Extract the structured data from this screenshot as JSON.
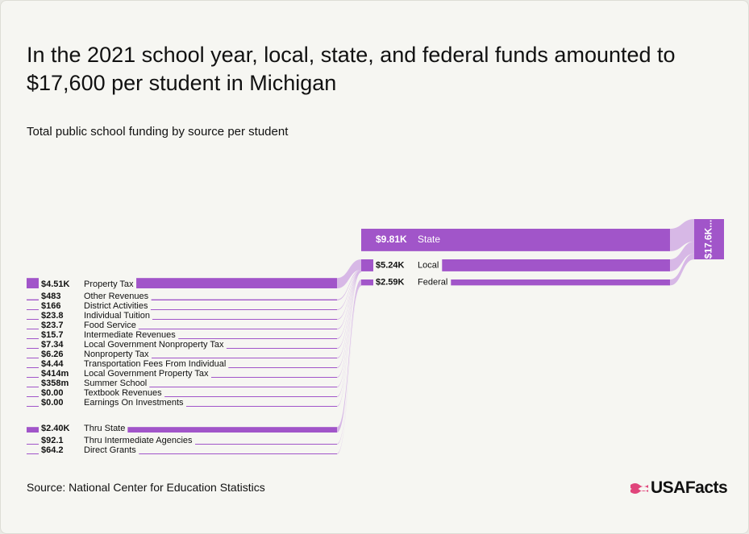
{
  "chart_data": {
    "type": "sankey",
    "title": "In the 2021 school year, local, state, and federal funds amounted to $17,600 per student in Michigan",
    "subtitle": "Total public school funding by source per student",
    "color": "#a155c9",
    "link_color": "#d7b8e6",
    "total": {
      "value": 17600,
      "value_label": "$17.6K..."
    },
    "flows": [
      {
        "name": "State",
        "value": 9810,
        "value_label": "$9.81K",
        "sources": []
      },
      {
        "name": "Local",
        "value": 5240,
        "value_label": "$5.24K",
        "sources": [
          {
            "name": "Property Tax",
            "value": 4510,
            "value_label": "$4.51K"
          },
          {
            "name": "Other Revenues",
            "value": 483,
            "value_label": "$483"
          },
          {
            "name": "District Activities",
            "value": 166,
            "value_label": "$166"
          },
          {
            "name": "Individual Tuition",
            "value": 23.8,
            "value_label": "$23.8"
          },
          {
            "name": "Food Service",
            "value": 23.7,
            "value_label": "$23.7"
          },
          {
            "name": "Intermediate Revenues",
            "value": 15.7,
            "value_label": "$15.7"
          },
          {
            "name": "Local Government Nonproperty Tax",
            "value": 7.34,
            "value_label": "$7.34"
          },
          {
            "name": "Nonproperty Tax",
            "value": 6.26,
            "value_label": "$6.26"
          },
          {
            "name": "Transportation Fees From Individual",
            "value": 4.44,
            "value_label": "$4.44"
          },
          {
            "name": "Local Government Property Tax",
            "value": 0.414,
            "value_label": "$414m"
          },
          {
            "name": "Summer School",
            "value": 0.358,
            "value_label": "$358m"
          },
          {
            "name": "Textbook Revenues",
            "value": 0,
            "value_label": "$0.00"
          },
          {
            "name": "Earnings On Investments",
            "value": 0,
            "value_label": "$0.00"
          }
        ]
      },
      {
        "name": "Federal",
        "value": 2590,
        "value_label": "$2.59K",
        "sources": [
          {
            "name": "Thru State",
            "value": 2400,
            "value_label": "$2.40K"
          },
          {
            "name": "Thru Intermediate Agencies",
            "value": 92.1,
            "value_label": "$92.1"
          },
          {
            "name": "Direct Grants",
            "value": 64.2,
            "value_label": "$64.2"
          }
        ]
      }
    ]
  },
  "source": "Source: National Center for Education Statistics",
  "brand": "USAFacts"
}
